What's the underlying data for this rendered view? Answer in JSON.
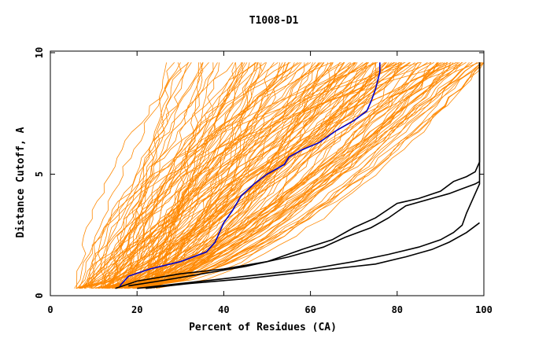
{
  "chart_data": {
    "type": "line",
    "title": "T1008-D1",
    "xlabel": "Percent of Residues (CA)",
    "ylabel": "Distance Cutoff, A",
    "xlim": [
      0,
      100
    ],
    "ylim": [
      0,
      10
    ],
    "x_ticks": [
      "0",
      "20",
      "40",
      "60",
      "80",
      "100"
    ],
    "y_ticks": [
      "0",
      "5",
      "10"
    ],
    "colors": {
      "orange": "#ff8800",
      "blue": "#0000cc",
      "black": "#000000"
    },
    "series": [
      {
        "color": "blue",
        "x": [
          16,
          18,
          23,
          30,
          36,
          38,
          39,
          40,
          42,
          44,
          47,
          50,
          54,
          55,
          58,
          62,
          66,
          70,
          73,
          74,
          75,
          76,
          76
        ],
        "y": [
          0.4,
          0.8,
          1.1,
          1.4,
          1.8,
          2.2,
          2.6,
          3.0,
          3.5,
          4.1,
          4.6,
          5.0,
          5.4,
          5.7,
          6.0,
          6.3,
          6.8,
          7.2,
          7.6,
          8.0,
          8.5,
          9.2,
          9.6
        ]
      },
      {
        "color": "black",
        "x": [
          15,
          20,
          30,
          40,
          50,
          58,
          65,
          70,
          75,
          80,
          85,
          90,
          93,
          96,
          98,
          99,
          99
        ],
        "y": [
          0.3,
          0.6,
          0.9,
          1.1,
          1.4,
          1.9,
          2.3,
          2.8,
          3.2,
          3.8,
          4.0,
          4.3,
          4.7,
          4.9,
          5.1,
          5.5,
          9.6
        ]
      },
      {
        "color": "black",
        "x": [
          18,
          25,
          35,
          45,
          55,
          63,
          68,
          74,
          78,
          82,
          88,
          92,
          95,
          98,
          99
        ],
        "y": [
          0.4,
          0.6,
          0.9,
          1.2,
          1.6,
          2.0,
          2.4,
          2.8,
          3.2,
          3.7,
          4.0,
          4.2,
          4.4,
          4.6,
          4.7
        ]
      },
      {
        "color": "black",
        "x": [
          20,
          30,
          40,
          50,
          60,
          70,
          78,
          85,
          90,
          93,
          95,
          96,
          97,
          98,
          99,
          99
        ],
        "y": [
          0.3,
          0.5,
          0.7,
          0.9,
          1.1,
          1.4,
          1.7,
          2.0,
          2.3,
          2.6,
          2.9,
          3.4,
          3.8,
          4.2,
          4.6,
          9.6
        ]
      },
      {
        "color": "black",
        "x": [
          22,
          32,
          45,
          55,
          65,
          75,
          82,
          88,
          92,
          96,
          99
        ],
        "y": [
          0.3,
          0.5,
          0.7,
          0.9,
          1.1,
          1.3,
          1.6,
          1.9,
          2.2,
          2.6,
          3.0
        ]
      }
    ],
    "orange_band": {
      "description": "Many unlabeled orange model curves",
      "color": "orange",
      "start_x_range": [
        6,
        25
      ],
      "end_x_range": [
        26,
        100
      ],
      "y_range": [
        0.3,
        9.6
      ]
    }
  }
}
